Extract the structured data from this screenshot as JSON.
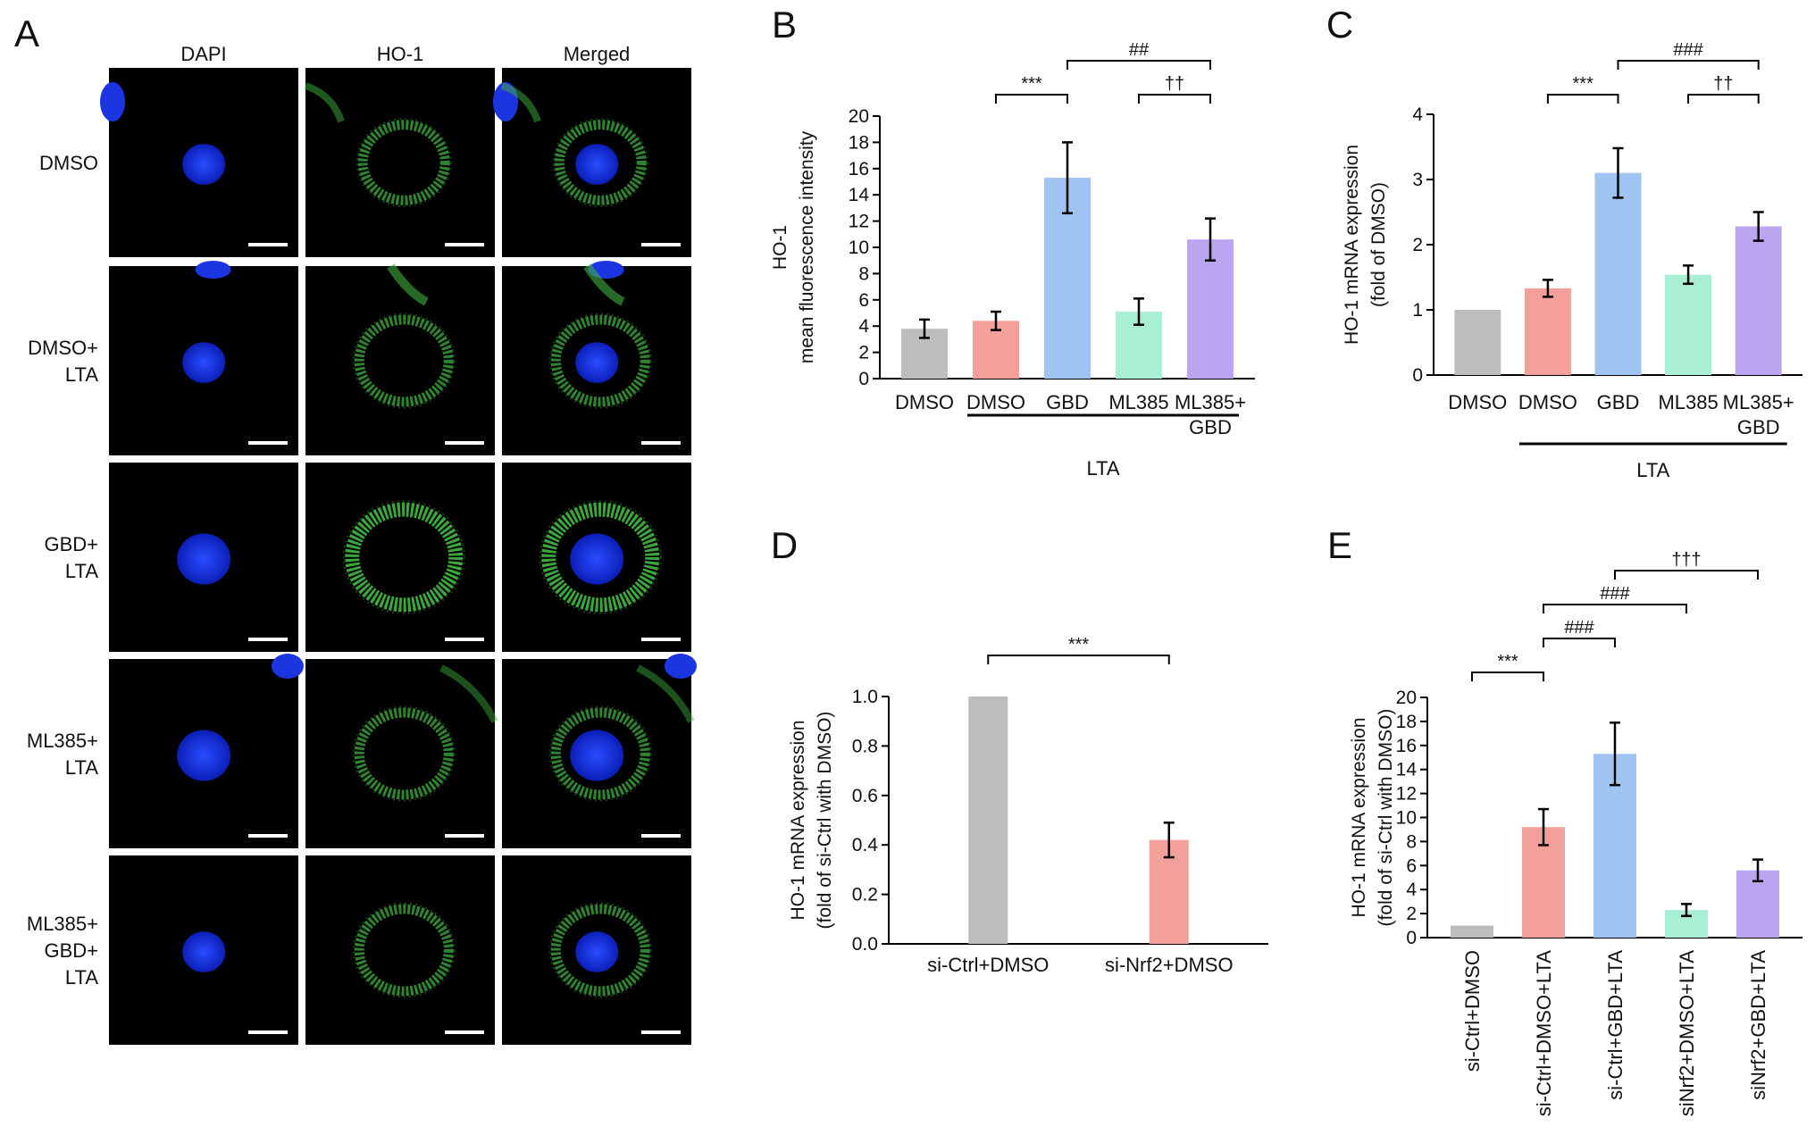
{
  "panelA": {
    "letter": "A",
    "columns": [
      "DAPI",
      "HO-1",
      "Merged"
    ],
    "rows": [
      {
        "label": [
          "DMSO"
        ]
      },
      {
        "label": [
          "DMSO+",
          "LTA"
        ]
      },
      {
        "label": [
          "GBD+",
          "LTA"
        ]
      },
      {
        "label": [
          "ML385+",
          "LTA"
        ]
      },
      {
        "label": [
          "ML385+",
          "GBD+",
          "LTA"
        ]
      }
    ],
    "colors": {
      "background": "#000000",
      "dapi": "#1f3cff",
      "ho1": "#3fb13f",
      "scalebar": "#ffffff"
    }
  },
  "chart_data": [
    {
      "id": "B",
      "letter": "B",
      "type": "bar",
      "ylabel": [
        "HO-1",
        "mean fluorescence intensity"
      ],
      "ylim": [
        0,
        20
      ],
      "yticks": [
        0,
        2,
        4,
        6,
        8,
        10,
        12,
        14,
        16,
        18,
        20
      ],
      "categories": [
        [
          "DMSO"
        ],
        [
          "DMSO"
        ],
        [
          "GBD"
        ],
        [
          "ML385"
        ],
        [
          "ML385+",
          "GBD"
        ]
      ],
      "values": [
        3.8,
        4.4,
        15.3,
        5.1,
        10.6
      ],
      "errors": [
        0.7,
        0.7,
        2.7,
        1.0,
        1.6
      ],
      "colors": [
        "#bdbdbd",
        "#f4a09a",
        "#9fc4f2",
        "#a8efd3",
        "#bba4f0"
      ],
      "group": {
        "label": "LTA",
        "from": 1,
        "to": 4
      },
      "brackets": [
        {
          "from": 1,
          "to": 2,
          "label": "***",
          "level": 1
        },
        {
          "from": 3,
          "to": 4,
          "label": "††",
          "level": 1
        },
        {
          "from": 2,
          "to": 4,
          "label": "##",
          "level": 2
        }
      ]
    },
    {
      "id": "C",
      "letter": "C",
      "type": "bar",
      "ylabel": [
        "HO-1 mRNA expression",
        "(fold of DMSO)"
      ],
      "ylim": [
        0,
        4
      ],
      "yticks": [
        0,
        1,
        2,
        3,
        4
      ],
      "categories": [
        [
          "DMSO"
        ],
        [
          "DMSO"
        ],
        [
          "GBD"
        ],
        [
          "ML385"
        ],
        [
          "ML385+",
          "GBD"
        ]
      ],
      "values": [
        1.0,
        1.33,
        3.1,
        1.54,
        2.28
      ],
      "errors": [
        0,
        0.13,
        0.38,
        0.14,
        0.22
      ],
      "colors": [
        "#bdbdbd",
        "#f4a09a",
        "#9fc4f2",
        "#a8efd3",
        "#bba4f0"
      ],
      "group": {
        "label": "LTA",
        "from": 1,
        "to": 4
      },
      "brackets": [
        {
          "from": 1,
          "to": 2,
          "label": "***",
          "level": 1
        },
        {
          "from": 3,
          "to": 4,
          "label": "††",
          "level": 1
        },
        {
          "from": 2,
          "to": 4,
          "label": "###",
          "level": 2
        }
      ]
    },
    {
      "id": "D",
      "letter": "D",
      "type": "bar",
      "ylabel": [
        "HO-1 mRNA expression",
        "(fold of si-Ctrl with DMSO)"
      ],
      "ylim": [
        0,
        1.0
      ],
      "yticks": [
        0.0,
        0.2,
        0.4,
        0.6,
        0.8,
        1.0
      ],
      "categories": [
        [
          "si-Ctrl+DMSO"
        ],
        [
          "si-Nrf2+DMSO"
        ]
      ],
      "values": [
        1.0,
        0.42
      ],
      "errors": [
        0,
        0.07
      ],
      "colors": [
        "#bdbdbd",
        "#f4a09a"
      ],
      "brackets": [
        {
          "from": 0,
          "to": 1,
          "label": "***",
          "level": 1
        }
      ]
    },
    {
      "id": "E",
      "letter": "E",
      "type": "bar",
      "ylabel": [
        "HO-1 mRNA expression",
        "(fold of si-Ctrl with DMSO)"
      ],
      "ylim": [
        0,
        20
      ],
      "yticks": [
        0,
        2,
        4,
        6,
        8,
        10,
        12,
        14,
        16,
        18,
        20
      ],
      "categories": [
        [
          "si-Ctrl+DMSO"
        ],
        [
          "si-Ctrl+DMSO+LTA"
        ],
        [
          "si-Ctrl+GBD+LTA"
        ],
        [
          "siNrf2+DMSO+LTA"
        ],
        [
          "siNrf2+GBD+LTA"
        ]
      ],
      "values": [
        1.0,
        9.2,
        15.3,
        2.3,
        5.6
      ],
      "errors": [
        0,
        1.5,
        2.6,
        0.5,
        0.9
      ],
      "colors": [
        "#bdbdbd",
        "#f4a09a",
        "#9fc4f2",
        "#a8efd3",
        "#bba4f0"
      ],
      "brackets": [
        {
          "from": 0,
          "to": 1,
          "label": "***",
          "level": 1
        },
        {
          "from": 1,
          "to": 2,
          "label": "###",
          "level": 2
        },
        {
          "from": 1,
          "to": 3,
          "label": "###",
          "level": 3
        },
        {
          "from": 2,
          "to": 4,
          "label": "†††",
          "level": 4
        }
      ]
    }
  ]
}
